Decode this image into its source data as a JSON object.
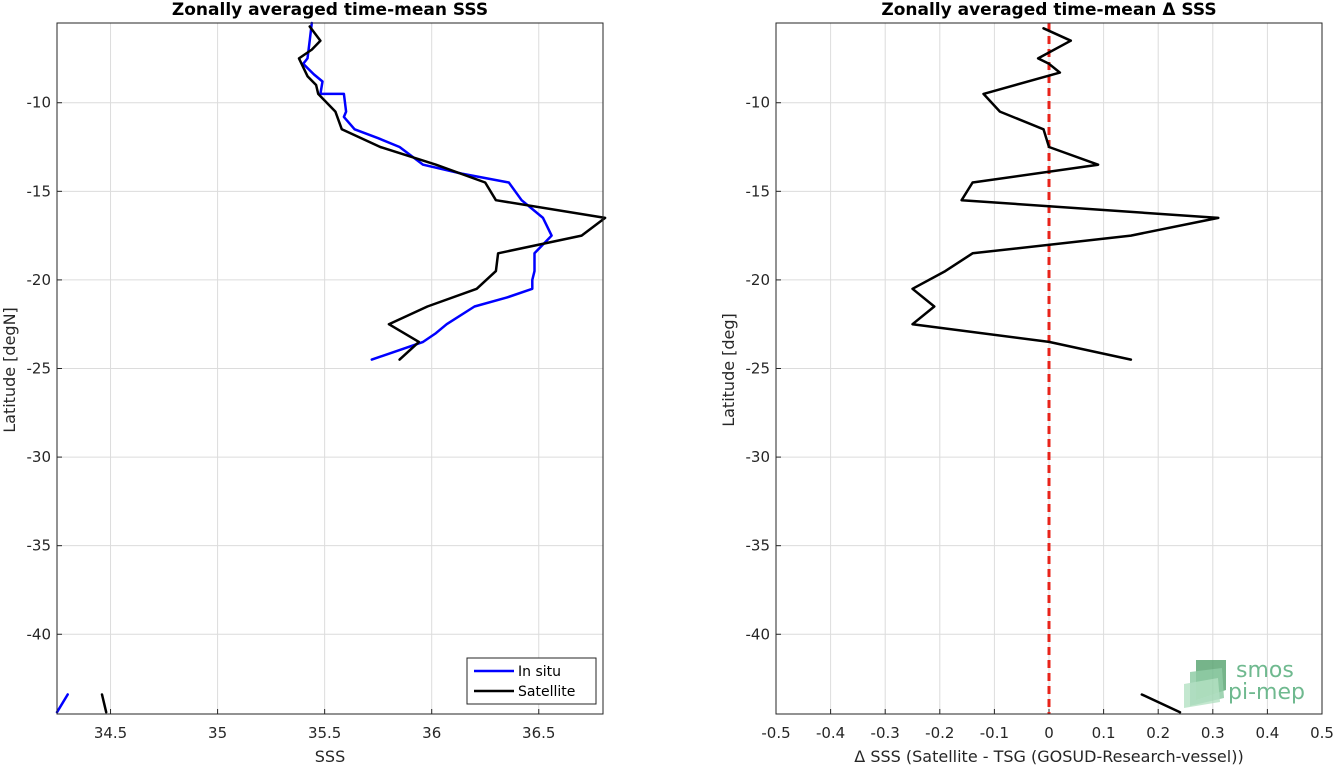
{
  "chart_data": [
    {
      "type": "line",
      "title": "Zonally averaged time-mean SSS",
      "xlabel": "SSS",
      "ylabel": "Latitude [degN]",
      "xlim": [
        34.25,
        36.8
      ],
      "ylim": [
        -44.5,
        -5.5
      ],
      "xticks": [
        34.5,
        35,
        35.5,
        36,
        36.5
      ],
      "xtick_labels": [
        "34.5",
        "35",
        "35.5",
        "36",
        "36.5"
      ],
      "yticks": [
        -10,
        -15,
        -20,
        -25,
        -30,
        -35,
        -40
      ],
      "ytick_labels": [
        "-10",
        "-15",
        "-20",
        "-25",
        "-30",
        "-35",
        "-40"
      ],
      "grid": true,
      "legend_position": "bottom-right",
      "series": [
        {
          "name": "In situ",
          "color": "#0000ff",
          "segments": [
            {
              "x": [
                35.44,
                35.43,
                35.42,
                35.4,
                35.45,
                35.49,
                35.48,
                35.59,
                35.6,
                35.59,
                35.64,
                35.75,
                35.85,
                35.96,
                36.14,
                36.36,
                36.42,
                36.52,
                36.56,
                36.52,
                36.48,
                36.48,
                36.47,
                36.47,
                36.35,
                36.2,
                36.07,
                36.02,
                35.96,
                35.84,
                35.72
              ],
              "y": [
                -5.5,
                -6.5,
                -7.5,
                -7.8,
                -8.4,
                -8.8,
                -9.5,
                -9.5,
                -10.5,
                -10.8,
                -11.5,
                -12.0,
                -12.5,
                -13.5,
                -14.0,
                -14.5,
                -15.5,
                -16.5,
                -17.5,
                -18.0,
                -18.5,
                -19.5,
                -20.0,
                -20.5,
                -21.0,
                -21.5,
                -22.5,
                -23.0,
                -23.5,
                -24.0,
                -24.5
              ]
            },
            {
              "x": [
                34.25,
                34.3
              ],
              "y": [
                -44.4,
                -43.4
              ]
            }
          ]
        },
        {
          "name": "Satellite",
          "color": "#000000",
          "segments": [
            {
              "x": [
                35.43,
                35.48,
                35.44,
                35.38,
                35.42,
                35.46,
                35.47,
                35.55,
                35.58,
                35.76,
                36.02,
                36.25,
                36.3,
                36.81,
                36.7,
                36.31,
                36.3,
                36.21,
                35.98,
                35.8,
                35.94,
                35.85
              ],
              "y": [
                -5.7,
                -6.5,
                -7.0,
                -7.5,
                -8.5,
                -9.0,
                -9.5,
                -10.5,
                -11.5,
                -12.5,
                -13.5,
                -14.5,
                -15.5,
                -16.5,
                -17.5,
                -18.5,
                -19.5,
                -20.5,
                -21.5,
                -22.5,
                -23.5,
                -24.5
              ]
            },
            {
              "x": [
                34.46,
                34.48
              ],
              "y": [
                -43.4,
                -44.4
              ]
            }
          ]
        }
      ]
    },
    {
      "type": "line",
      "title": "Zonally averaged time-mean Δ SSS",
      "xlabel": "Δ SSS (Satellite - TSG (GOSUD-Research-vessel))",
      "ylabel": "Latitude [deg]",
      "xlim": [
        -0.5,
        0.5
      ],
      "ylim": [
        -44.5,
        -5.5
      ],
      "xticks": [
        -0.5,
        -0.4,
        -0.3,
        -0.2,
        -0.1,
        0,
        0.1,
        0.2,
        0.3,
        0.4,
        0.5
      ],
      "xtick_labels": [
        "-0.5",
        "-0.4",
        "-0.3",
        "-0.2",
        "-0.1",
        "0",
        "0.1",
        "0.2",
        "0.3",
        "0.4",
        "0.5"
      ],
      "yticks": [
        -10,
        -15,
        -20,
        -25,
        -30,
        -35,
        -40
      ],
      "ytick_labels": [
        "-10",
        "-15",
        "-20",
        "-25",
        "-30",
        "-35",
        "-40"
      ],
      "grid": true,
      "zero_line": {
        "x": 0,
        "color": "#e8231a",
        "style": "dashed"
      },
      "series": [
        {
          "name": "",
          "color": "#000000",
          "segments": [
            {
              "x": [
                -0.01,
                0.04,
                -0.02,
                0.0,
                0.02,
                -0.12,
                -0.09,
                -0.01,
                0.0,
                0.09,
                -0.14,
                -0.16,
                0.31,
                0.15,
                -0.14,
                -0.19,
                -0.25,
                -0.21,
                -0.25,
                0.0,
                0.15
              ],
              "y": [
                -5.8,
                -6.5,
                -7.5,
                -7.8,
                -8.3,
                -9.5,
                -10.5,
                -11.5,
                -12.5,
                -13.5,
                -14.5,
                -15.5,
                -16.5,
                -17.5,
                -18.5,
                -19.5,
                -20.5,
                -21.5,
                -22.5,
                -23.5,
                -24.5
              ]
            },
            {
              "x": [
                0.17,
                0.24
              ],
              "y": [
                -43.4,
                -44.4
              ]
            }
          ]
        }
      ]
    }
  ],
  "logo": {
    "line1": "smos",
    "line2": "pi-mep",
    "color": "#6fb98f"
  }
}
